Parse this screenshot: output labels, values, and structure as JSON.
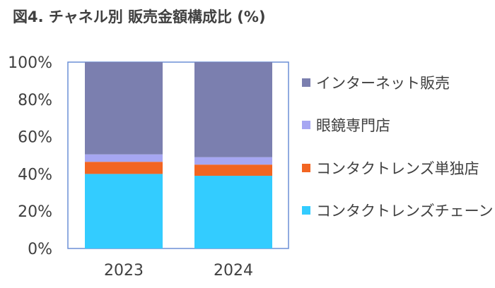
{
  "title": "図4. チャネル別 販売金額構成比 (%)",
  "chart_data": {
    "type": "bar",
    "stacked": "percent",
    "categories": [
      "2023",
      "2024"
    ],
    "series": [
      {
        "name": "コンタクトレンズチェーン",
        "color": "#33CCFF",
        "values": [
          40.0,
          39.0
        ]
      },
      {
        "name": "コンタクトレンズ単独店",
        "color": "#F26522",
        "values": [
          6.5,
          6.0
        ]
      },
      {
        "name": "眼鏡専門店",
        "color": "#A6A6F2",
        "values": [
          4.0,
          4.0
        ]
      },
      {
        "name": "インターネット販売",
        "color": "#7B7FAF",
        "values": [
          49.5,
          51.0
        ]
      }
    ],
    "ylim": [
      0,
      100
    ],
    "yticks": [
      "0%",
      "20%",
      "40%",
      "60%",
      "80%",
      "100%"
    ],
    "grid": false,
    "legend_position": "right"
  }
}
